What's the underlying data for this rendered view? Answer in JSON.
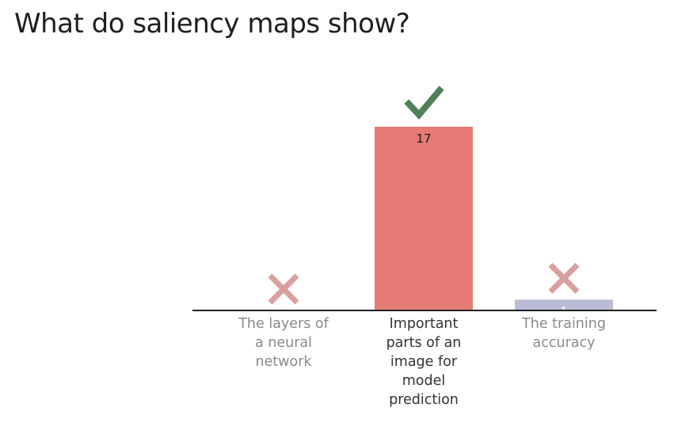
{
  "title": "What do saliency maps show?",
  "chart_data": {
    "type": "bar",
    "categories": [
      "The layers of a neural network",
      "Important parts of an image for model prediction",
      "The training accuracy"
    ],
    "category_lines": [
      [
        "The layers of",
        "a neural",
        "network"
      ],
      [
        "Important",
        "parts of an",
        "image for",
        "model",
        "prediction"
      ],
      [
        "The training",
        "accuracy"
      ]
    ],
    "values": [
      0,
      17,
      1
    ],
    "correct": [
      false,
      true,
      false
    ],
    "colors": [
      "#e57b74",
      "#e57b74",
      "#babbd4"
    ],
    "check_color": "#4f8158",
    "cross_color": "#d9a09d",
    "label_color_correct": "#333333",
    "label_color_incorrect": "#8a8a8a",
    "ylim": [
      0,
      17
    ]
  }
}
